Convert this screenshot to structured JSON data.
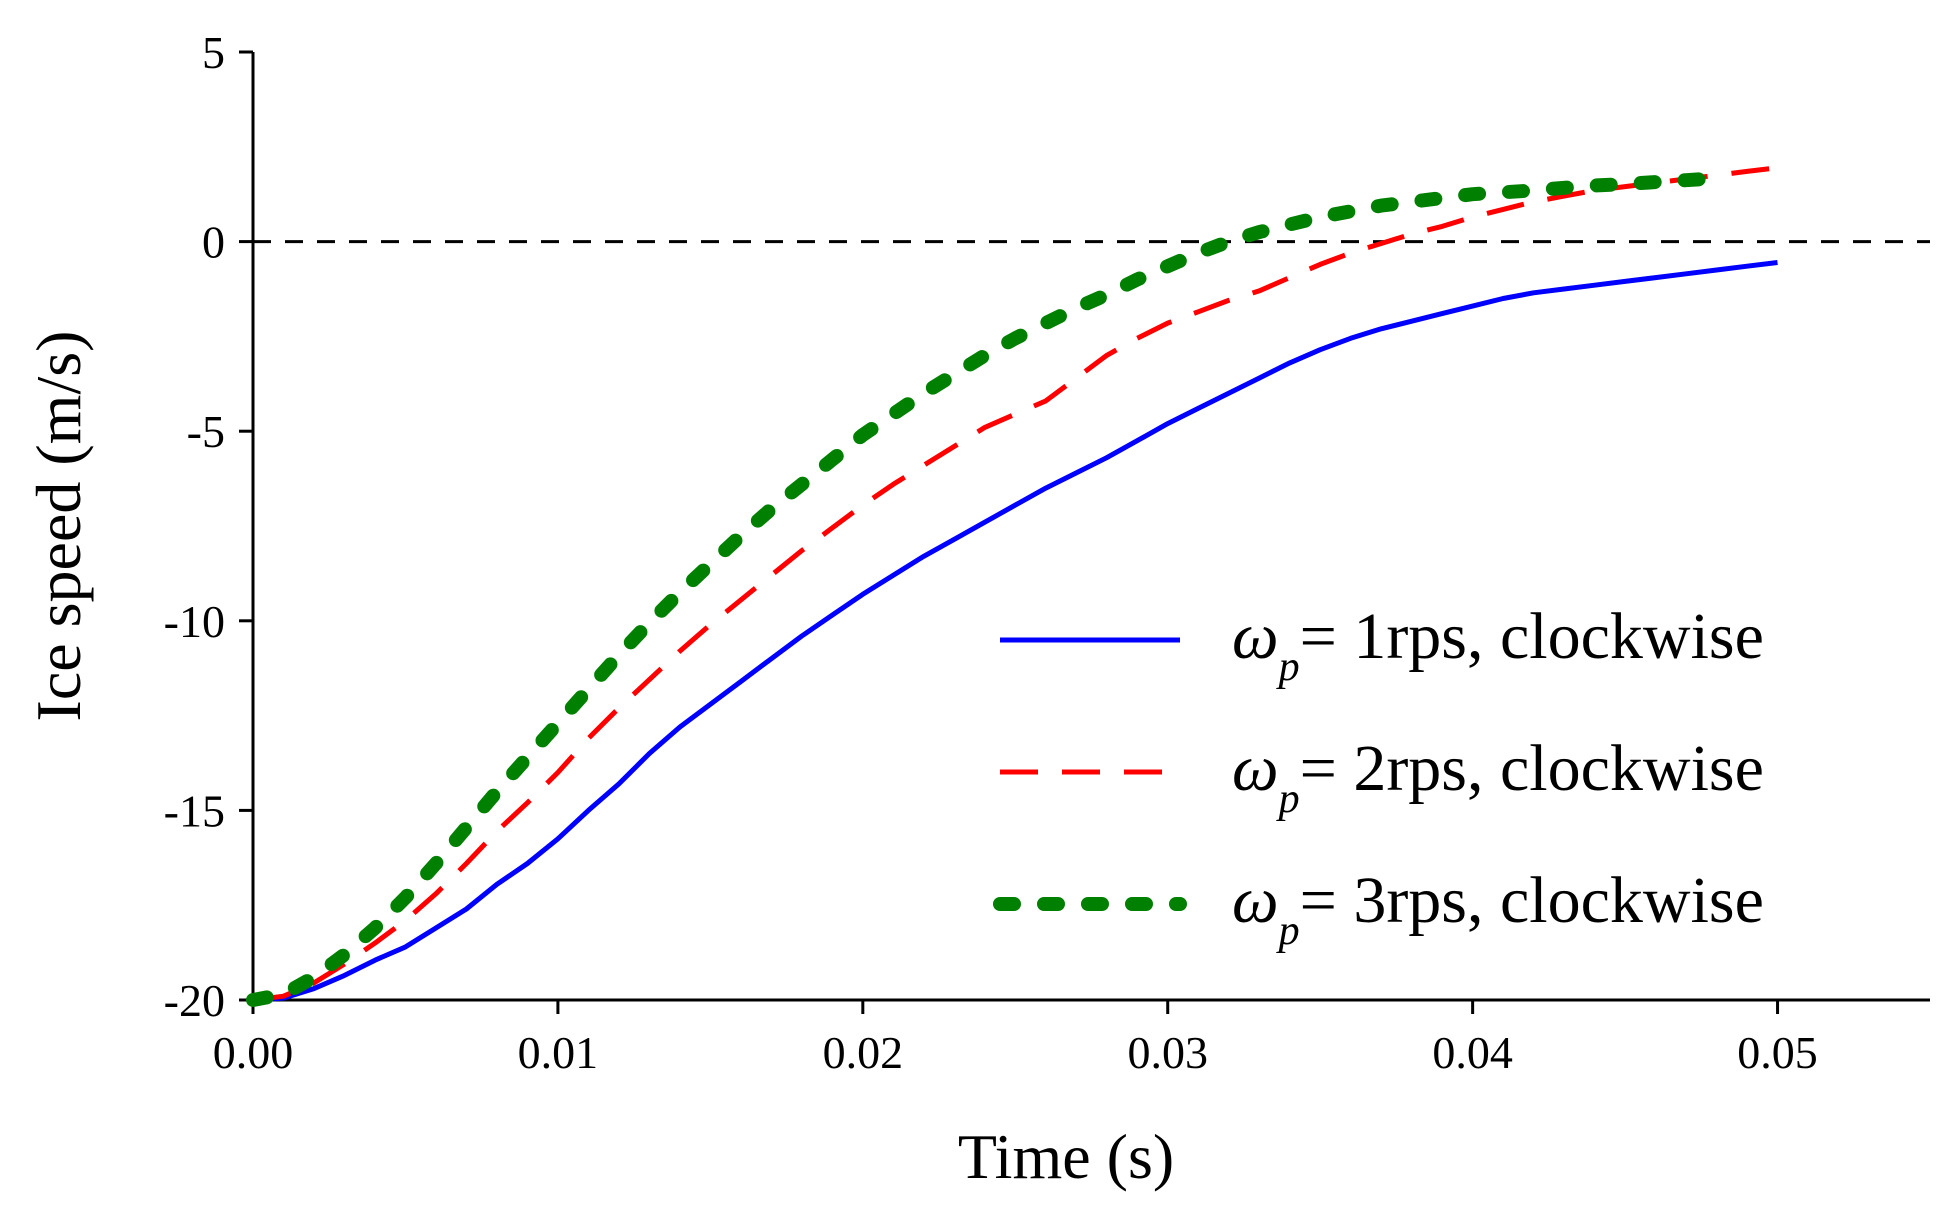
{
  "chart_data": {
    "type": "line",
    "title": "",
    "xlabel": "Time (s)",
    "ylabel": "Ice speed (m/s)",
    "xlim": [
      0.0,
      0.055
    ],
    "ylim": [
      -20,
      5
    ],
    "xticks": [
      0.0,
      0.01,
      0.02,
      0.03,
      0.04,
      0.05
    ],
    "xtick_labels": [
      "0.00",
      "0.01",
      "0.02",
      "0.03",
      "0.04",
      "0.05"
    ],
    "yticks": [
      -20,
      -15,
      -10,
      -5,
      0,
      5
    ],
    "ytick_labels": [
      "-20",
      "-15",
      "-10",
      "-5",
      "0",
      "5"
    ],
    "reference_line": {
      "y": 0,
      "style": "dashed",
      "color": "#000000"
    },
    "legend_position": "lower-right",
    "series": [
      {
        "name": "ωp= 1rps, clockwise",
        "legend_symbol": "ω",
        "legend_subscript": "p",
        "legend_text": "= 1rps, clockwise",
        "color": "#0000ff",
        "style": "solid",
        "x": [
          0.0,
          0.001,
          0.002,
          0.003,
          0.004,
          0.005,
          0.006,
          0.007,
          0.008,
          0.009,
          0.01,
          0.011,
          0.012,
          0.013,
          0.014,
          0.015,
          0.016,
          0.017,
          0.018,
          0.019,
          0.02,
          0.021,
          0.022,
          0.023,
          0.024,
          0.025,
          0.026,
          0.027,
          0.028,
          0.029,
          0.03,
          0.031,
          0.032,
          0.033,
          0.034,
          0.035,
          0.036,
          0.037,
          0.038,
          0.039,
          0.04,
          0.041,
          0.042,
          0.043,
          0.044,
          0.045,
          0.046,
          0.047,
          0.048,
          0.049,
          0.05
        ],
        "y": [
          -20.0,
          -19.95,
          -19.7,
          -19.35,
          -18.95,
          -18.6,
          -18.1,
          -17.6,
          -16.95,
          -16.4,
          -15.75,
          -15.0,
          -14.3,
          -13.5,
          -12.8,
          -12.2,
          -11.6,
          -11.0,
          -10.4,
          -9.85,
          -9.3,
          -8.8,
          -8.3,
          -7.85,
          -7.4,
          -6.95,
          -6.5,
          -6.1,
          -5.7,
          -5.25,
          -4.8,
          -4.4,
          -4.0,
          -3.6,
          -3.2,
          -2.85,
          -2.55,
          -2.3,
          -2.1,
          -1.9,
          -1.7,
          -1.5,
          -1.35,
          -1.25,
          -1.15,
          -1.05,
          -0.95,
          -0.85,
          -0.75,
          -0.65,
          -0.55
        ]
      },
      {
        "name": "ωp= 2rps, clockwise",
        "legend_symbol": "ω",
        "legend_subscript": "p",
        "legend_text": "= 2rps, clockwise",
        "color": "#ff0000",
        "style": "dashed",
        "x": [
          0.0,
          0.001,
          0.002,
          0.003,
          0.004,
          0.005,
          0.006,
          0.007,
          0.008,
          0.009,
          0.01,
          0.011,
          0.012,
          0.013,
          0.014,
          0.015,
          0.016,
          0.017,
          0.018,
          0.019,
          0.02,
          0.021,
          0.022,
          0.023,
          0.024,
          0.025,
          0.026,
          0.027,
          0.028,
          0.029,
          0.03,
          0.031,
          0.032,
          0.033,
          0.034,
          0.035,
          0.036,
          0.037,
          0.038,
          0.039,
          0.04,
          0.041,
          0.042,
          0.043,
          0.044,
          0.045,
          0.046,
          0.047,
          0.048,
          0.049,
          0.05
        ],
        "y": [
          -20.0,
          -19.9,
          -19.55,
          -19.05,
          -18.5,
          -17.9,
          -17.2,
          -16.4,
          -15.55,
          -14.8,
          -14.0,
          -13.1,
          -12.3,
          -11.55,
          -10.8,
          -10.1,
          -9.45,
          -8.8,
          -8.15,
          -7.55,
          -6.95,
          -6.4,
          -5.9,
          -5.4,
          -4.9,
          -4.55,
          -4.2,
          -3.6,
          -3.0,
          -2.55,
          -2.15,
          -1.85,
          -1.55,
          -1.3,
          -0.95,
          -0.6,
          -0.3,
          -0.05,
          0.2,
          0.4,
          0.65,
          0.85,
          1.05,
          1.2,
          1.35,
          1.45,
          1.55,
          1.65,
          1.75,
          1.85,
          1.95
        ]
      },
      {
        "name": "ωp= 3rps, clockwise",
        "legend_symbol": "ω",
        "legend_subscript": "p",
        "legend_text": "= 3rps, clockwise",
        "color": "#008000",
        "style": "dotted",
        "x": [
          0.0,
          0.001,
          0.002,
          0.003,
          0.004,
          0.005,
          0.006,
          0.007,
          0.008,
          0.009,
          0.01,
          0.011,
          0.012,
          0.013,
          0.014,
          0.015,
          0.016,
          0.017,
          0.018,
          0.019,
          0.02,
          0.021,
          0.022,
          0.023,
          0.024,
          0.025,
          0.026,
          0.027,
          0.028,
          0.029,
          0.03,
          0.031,
          0.032,
          0.033,
          0.034,
          0.035,
          0.036,
          0.037,
          0.038,
          0.039,
          0.04,
          0.041,
          0.042,
          0.043,
          0.044,
          0.045,
          0.046,
          0.047,
          0.048
        ],
        "y": [
          -20.0,
          -19.85,
          -19.4,
          -18.8,
          -18.1,
          -17.3,
          -16.4,
          -15.45,
          -14.5,
          -13.6,
          -12.7,
          -11.8,
          -10.9,
          -10.05,
          -9.25,
          -8.5,
          -7.75,
          -7.05,
          -6.4,
          -5.75,
          -5.1,
          -4.55,
          -4.0,
          -3.5,
          -3.0,
          -2.55,
          -2.15,
          -1.75,
          -1.4,
          -1.0,
          -0.65,
          -0.3,
          0.0,
          0.25,
          0.45,
          0.65,
          0.8,
          0.95,
          1.05,
          1.15,
          1.25,
          1.3,
          1.35,
          1.42,
          1.48,
          1.52,
          1.57,
          1.62,
          1.67
        ]
      }
    ]
  }
}
